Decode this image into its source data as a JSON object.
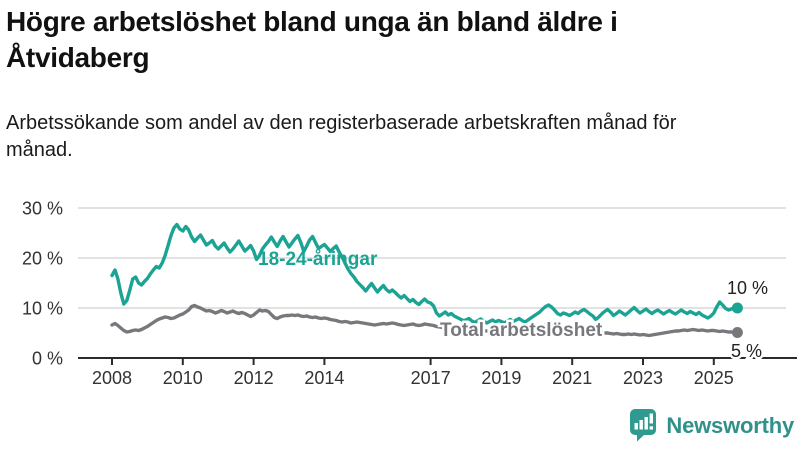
{
  "page": {
    "title": "Högre arbetslöshet bland unga än bland äldre i Åtvidaberg",
    "subtitle": "Arbetssökande som andel av den registerbaserade arbetskraften månad för månad."
  },
  "branding": {
    "logo_text": "Newsworthy",
    "logo_icon": "bar-chart-speech-bubble-icon"
  },
  "colors": {
    "accent_teal": "#1ba394",
    "line_gray": "#77787c",
    "grid": "#d9d9d9",
    "axis": "#2b2b2b",
    "tick_text": "#333333",
    "end_label_text": "#222222",
    "logo_teal": "#2f918a"
  },
  "chart_data": {
    "type": "line",
    "title": "Högre arbetslöshet bland unga än bland äldre i Åtvidaberg",
    "subtitle": "Arbetssökande som andel av den registerbaserade arbetskraften månad för månad.",
    "unit": "%",
    "grid": true,
    "legend_position": "inline-labels",
    "x_start_year": 2008,
    "points_per_year": 12,
    "xticks": [
      2008,
      2010,
      2012,
      2014,
      2017,
      2019,
      2021,
      2023,
      2025
    ],
    "yticks": [
      {
        "value": 0,
        "label": "0 %"
      },
      {
        "value": 10,
        "label": "10 %"
      },
      {
        "value": 20,
        "label": "20 %"
      },
      {
        "value": 30,
        "label": "30 %"
      }
    ],
    "ylim": [
      0,
      31
    ],
    "series": [
      {
        "name": "18-24-åringar",
        "color": "#1ba394",
        "end_label": "10 %",
        "values": [
          16.5,
          17.6,
          15.8,
          13.0,
          10.8,
          11.5,
          13.5,
          15.8,
          16.2,
          15.0,
          14.6,
          15.3,
          15.9,
          16.8,
          17.6,
          18.3,
          18.0,
          19.0,
          20.5,
          22.5,
          24.5,
          26.0,
          26.7,
          25.8,
          25.4,
          26.3,
          25.6,
          24.2,
          23.3,
          24.0,
          24.6,
          23.6,
          22.6,
          23.0,
          23.5,
          22.4,
          21.8,
          22.4,
          23.0,
          22.0,
          21.2,
          21.8,
          22.6,
          23.4,
          22.4,
          21.4,
          21.9,
          22.5,
          21.4,
          19.7,
          20.5,
          21.8,
          22.6,
          23.3,
          24.2,
          23.2,
          22.3,
          23.4,
          24.3,
          23.2,
          22.2,
          23.0,
          23.8,
          24.5,
          23.1,
          21.3,
          22.4,
          23.6,
          24.3,
          23.1,
          21.9,
          22.3,
          22.7,
          22.0,
          21.3,
          21.9,
          22.4,
          21.2,
          20.2,
          19.0,
          17.8,
          16.9,
          16.2,
          15.3,
          14.7,
          14.1,
          13.4,
          14.2,
          14.9,
          14.0,
          13.2,
          13.9,
          14.5,
          13.7,
          13.2,
          13.6,
          13.1,
          12.5,
          12.0,
          12.5,
          11.9,
          11.3,
          11.7,
          11.1,
          10.7,
          11.3,
          11.8,
          11.2,
          11.0,
          10.4,
          9.0,
          8.4,
          8.8,
          9.2,
          8.6,
          8.9,
          8.4,
          8.1,
          7.8,
          7.5,
          7.6,
          7.9,
          7.4,
          7.1,
          7.5,
          7.8,
          7.4,
          7.0,
          7.3,
          7.6,
          7.2,
          7.5,
          7.3,
          7.0,
          7.4,
          7.7,
          7.3,
          7.6,
          7.9,
          7.5,
          7.2,
          7.6,
          8.0,
          8.4,
          8.8,
          9.2,
          9.8,
          10.3,
          10.6,
          10.2,
          9.6,
          8.9,
          8.6,
          9.0,
          8.8,
          8.5,
          8.8,
          9.2,
          8.9,
          9.4,
          9.7,
          9.3,
          8.8,
          8.4,
          7.7,
          8.2,
          8.8,
          9.3,
          9.7,
          9.2,
          8.5,
          8.9,
          9.4,
          9.0,
          8.6,
          9.1,
          9.6,
          10.1,
          9.5,
          9.0,
          9.4,
          9.8,
          9.3,
          8.9,
          9.3,
          9.6,
          9.2,
          8.8,
          9.2,
          9.5,
          9.1,
          8.8,
          9.2,
          9.6,
          9.2,
          8.9,
          9.3,
          9.0,
          8.7,
          9.1,
          8.6,
          8.3,
          8.0,
          8.4,
          9.0,
          10.2,
          11.2,
          10.6,
          9.9,
          9.6,
          9.8,
          10.1,
          10.0
        ]
      },
      {
        "name": "Total arbetslöshet",
        "color": "#77787c",
        "end_label": "5 %",
        "values": [
          6.6,
          6.9,
          6.5,
          6.0,
          5.5,
          5.2,
          5.3,
          5.5,
          5.6,
          5.5,
          5.7,
          6.0,
          6.3,
          6.7,
          7.1,
          7.5,
          7.8,
          8.0,
          8.2,
          8.1,
          7.9,
          8.0,
          8.3,
          8.6,
          8.8,
          9.2,
          9.6,
          10.3,
          10.5,
          10.2,
          10.0,
          9.7,
          9.4,
          9.5,
          9.3,
          9.0,
          9.2,
          9.5,
          9.3,
          9.0,
          9.2,
          9.4,
          9.1,
          8.9,
          9.1,
          8.9,
          8.6,
          8.3,
          8.6,
          9.1,
          9.6,
          9.4,
          9.5,
          9.3,
          8.7,
          8.1,
          7.9,
          8.2,
          8.4,
          8.5,
          8.5,
          8.6,
          8.5,
          8.6,
          8.4,
          8.3,
          8.4,
          8.2,
          8.1,
          8.2,
          8.0,
          7.9,
          8.0,
          7.9,
          7.7,
          7.6,
          7.5,
          7.3,
          7.2,
          7.3,
          7.2,
          7.0,
          7.1,
          7.2,
          7.1,
          7.0,
          6.9,
          6.8,
          6.7,
          6.6,
          6.7,
          6.8,
          6.9,
          6.8,
          6.9,
          7.0,
          6.9,
          6.7,
          6.6,
          6.5,
          6.6,
          6.7,
          6.8,
          6.6,
          6.5,
          6.6,
          6.8,
          6.7,
          6.6,
          6.5,
          6.3,
          6.2,
          6.1,
          6.2,
          6.1,
          6.0,
          5.9,
          5.8,
          5.7,
          5.8,
          5.7,
          5.6,
          5.5,
          5.4,
          5.5,
          5.6,
          5.5,
          5.4,
          5.3,
          5.4,
          5.5,
          5.6,
          5.5,
          5.4,
          5.5,
          5.6,
          5.5,
          5.6,
          5.7,
          5.6,
          5.5,
          5.6,
          5.7,
          5.8,
          5.9,
          6.1,
          6.4,
          6.6,
          6.7,
          6.6,
          6.4,
          6.2,
          6.1,
          6.0,
          5.9,
          5.8,
          5.9,
          6.0,
          5.9,
          5.8,
          5.7,
          5.6,
          5.5,
          5.4,
          5.3,
          5.2,
          5.1,
          5.0,
          5.0,
          4.9,
          4.8,
          4.9,
          4.8,
          4.7,
          4.7,
          4.8,
          4.7,
          4.8,
          4.7,
          4.6,
          4.7,
          4.6,
          4.5,
          4.6,
          4.7,
          4.8,
          4.9,
          5.0,
          5.1,
          5.2,
          5.3,
          5.4,
          5.4,
          5.5,
          5.6,
          5.5,
          5.6,
          5.7,
          5.6,
          5.5,
          5.6,
          5.5,
          5.4,
          5.5,
          5.5,
          5.4,
          5.3,
          5.4,
          5.3,
          5.2,
          5.2,
          5.1,
          5.1
        ]
      }
    ]
  }
}
